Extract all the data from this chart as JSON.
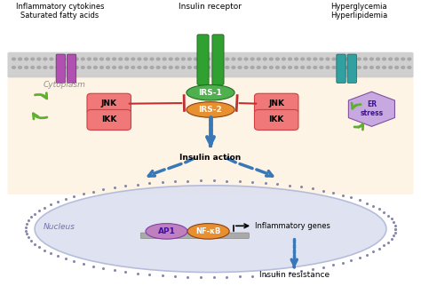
{
  "bg_color": "#ffffff",
  "membrane_color": "#c8c8c8",
  "cytoplasm_color": "#fdf3e3",
  "nucleus_color": "#dce0f0",
  "nucleus_edge": "#b0b8d8",
  "title_left": "Inflammatory cytokines\nSaturated fatty acids",
  "title_center": "Insulin receptor",
  "title_right": "Hyperglycemia\nHyperlipidemia",
  "label_cytoplasm": "Cytoplasm",
  "label_nucleus": "Nucleus",
  "label_irs1": "IRS-1",
  "label_irs2": "IRS-2",
  "label_jnk": "JNK",
  "label_ikk": "IKK",
  "label_ap1": "AP1",
  "label_nfkb": "NF-κB",
  "label_insulin_action": "Insulin action",
  "label_inflammatory": "Inflammatory genes",
  "label_insulin_resistance": "Insulin resistance",
  "label_er_stress": "ER\nstress",
  "irs1_color": "#50b050",
  "irs2_color": "#e89030",
  "jnk_ikk_color": "#f07878",
  "jnk_ikk_edge": "#d04040",
  "ap1_color": "#c080c0",
  "nfkb_color": "#e89030",
  "er_stress_color": "#c8a8e0",
  "er_stress_edge": "#8050a0",
  "blue_arrow": "#3878b8",
  "red_arrow": "#c03030",
  "green_arrow": "#60b030",
  "dna_bar_color": "#aaaaaa",
  "membrane_dot_color": "#a8a8a8",
  "nucleus_dot_color": "#8888aa",
  "left_receptor_color": "#b050b0",
  "right_receptor_color": "#30a0a0",
  "center_receptor_color": "#30a030",
  "receptor_edge_center": "#205020",
  "receptor_edge_left": "#702070",
  "receptor_edge_right": "#106060"
}
